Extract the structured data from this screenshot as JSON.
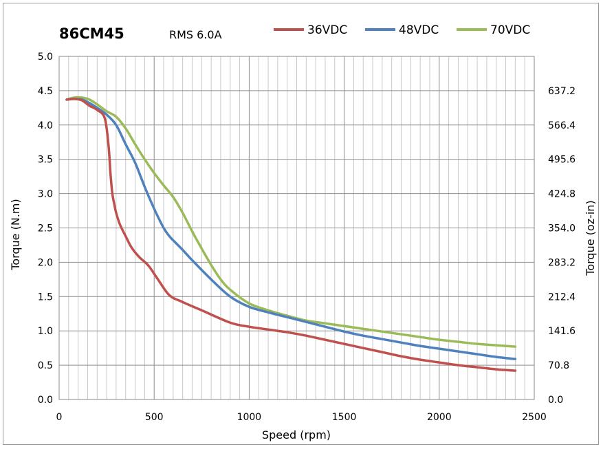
{
  "chart_data": {
    "type": "line",
    "title": "86CM45",
    "subtitle": "RMS 6.0A",
    "xlabel": "Speed (rpm)",
    "ylabel": "Torque (N.m)",
    "y2label": "Torque (oz-in)",
    "xlim": [
      0,
      2500
    ],
    "ylim": [
      0,
      5.0
    ],
    "x_ticks": [
      "0",
      "500",
      "1000",
      "1500",
      "2000",
      "2500"
    ],
    "y_ticks": [
      "0.0",
      "0.5",
      "1.0",
      "1.5",
      "2.0",
      "2.5",
      "3.0",
      "3.5",
      "4.0",
      "4.5",
      "5.0"
    ],
    "y2_ticks": [
      "0.0",
      "70.8",
      "141.6",
      "212.4",
      "283.2",
      "354.0",
      "424.8",
      "495.6",
      "566.4",
      "637.2"
    ],
    "grid": true,
    "legend_position": "top-right",
    "series": [
      {
        "name": "36VDC",
        "color": "#c0504d",
        "x": [
          40,
          80,
          120,
          160,
          200,
          240,
          260,
          270,
          280,
          290,
          300,
          320,
          350,
          380,
          420,
          470,
          520,
          580,
          650,
          750,
          900,
          1000,
          1100,
          1200,
          1300,
          1400,
          1500,
          1600,
          1700,
          1800,
          1900,
          2000,
          2100,
          2200,
          2300,
          2400
        ],
        "y": [
          4.37,
          4.38,
          4.36,
          4.28,
          4.22,
          4.1,
          3.7,
          3.3,
          3.0,
          2.85,
          2.72,
          2.55,
          2.38,
          2.22,
          2.08,
          1.95,
          1.75,
          1.52,
          1.42,
          1.3,
          1.12,
          1.06,
          1.02,
          0.98,
          0.93,
          0.87,
          0.81,
          0.75,
          0.69,
          0.63,
          0.58,
          0.54,
          0.5,
          0.47,
          0.44,
          0.42
        ]
      },
      {
        "name": "48VDC",
        "color": "#4f81bd",
        "x": [
          40,
          80,
          120,
          160,
          200,
          250,
          300,
          350,
          400,
          450,
          500,
          550,
          580,
          600,
          650,
          700,
          800,
          900,
          1000,
          1100,
          1200,
          1300,
          1400,
          1500,
          1600,
          1700,
          1800,
          1900,
          2000,
          2100,
          2200,
          2300,
          2400
        ],
        "y": [
          4.37,
          4.38,
          4.37,
          4.32,
          4.25,
          4.15,
          4.0,
          3.72,
          3.45,
          3.1,
          2.78,
          2.5,
          2.38,
          2.32,
          2.18,
          2.03,
          1.75,
          1.5,
          1.35,
          1.27,
          1.2,
          1.13,
          1.06,
          0.99,
          0.93,
          0.88,
          0.83,
          0.78,
          0.74,
          0.7,
          0.66,
          0.62,
          0.59
        ]
      },
      {
        "name": "70VDC",
        "color": "#9bbb59",
        "x": [
          40,
          80,
          120,
          160,
          200,
          250,
          300,
          350,
          400,
          450,
          500,
          550,
          600,
          650,
          700,
          750,
          800,
          850,
          900,
          1000,
          1100,
          1200,
          1300,
          1400,
          1500,
          1600,
          1700,
          1800,
          1900,
          2000,
          2100,
          2200,
          2300,
          2400
        ],
        "y": [
          4.37,
          4.4,
          4.4,
          4.37,
          4.3,
          4.2,
          4.12,
          3.95,
          3.72,
          3.5,
          3.3,
          3.12,
          2.95,
          2.72,
          2.45,
          2.2,
          1.96,
          1.75,
          1.6,
          1.4,
          1.3,
          1.22,
          1.15,
          1.11,
          1.07,
          1.03,
          0.99,
          0.95,
          0.91,
          0.87,
          0.84,
          0.81,
          0.79,
          0.77
        ]
      }
    ]
  }
}
